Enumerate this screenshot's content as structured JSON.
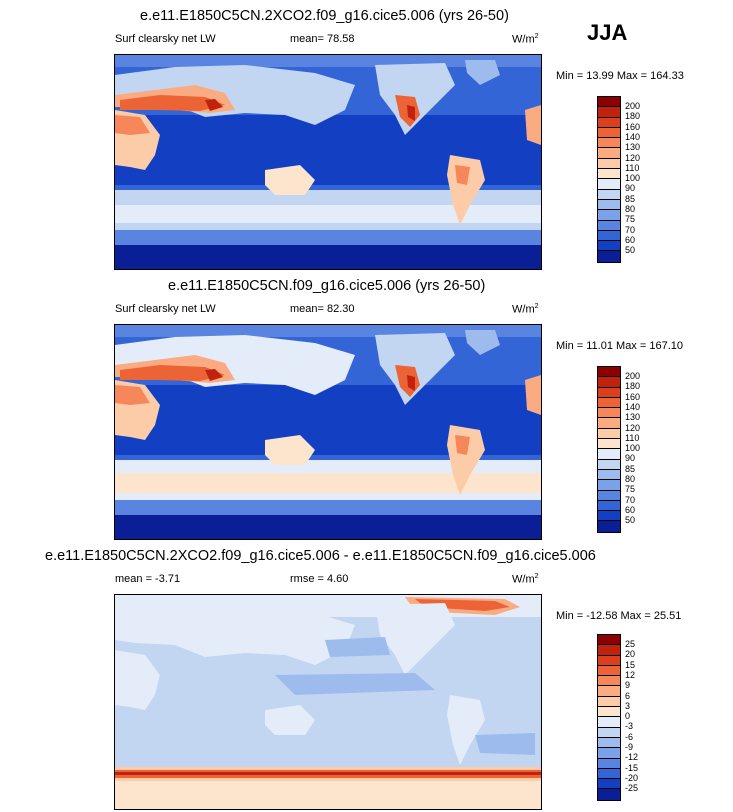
{
  "season": "JJA",
  "panels": [
    {
      "title": "e.e11.E1850C5CN.2XCO2.f09_g16.cice5.006 (yrs 26-50)",
      "variable": "Surf clearsky net LW",
      "mean": "mean=  78.58",
      "units": "W/m",
      "units_sup": "2",
      "minmax": "Min = 13.99 Max = 164.33",
      "colorbar": {
        "labels": [
          "200",
          "180",
          "160",
          "140",
          "130",
          "120",
          "110",
          "100",
          "90",
          "85",
          "80",
          "75",
          "70",
          "60",
          "50"
        ],
        "colors": [
          "#8b0000",
          "#c1210d",
          "#dc3f1d",
          "#ec6336",
          "#f5875a",
          "#fbab82",
          "#fccca8",
          "#fde4cd",
          "#e3ecf8",
          "#c2d6f2",
          "#9dbced",
          "#7ba1e8",
          "#5984e0",
          "#3465d6",
          "#1340c2",
          "#0a1f96"
        ]
      }
    },
    {
      "title": "e.e11.E1850C5CN.f09_g16.cice5.006 (yrs 26-50)",
      "variable": "Surf clearsky net LW",
      "mean": "mean=  82.30",
      "units": "W/m",
      "units_sup": "2",
      "minmax": "Min = 11.01 Max = 167.10",
      "colorbar": {
        "labels": [
          "200",
          "180",
          "160",
          "140",
          "130",
          "120",
          "110",
          "100",
          "90",
          "85",
          "80",
          "75",
          "70",
          "60",
          "50"
        ],
        "colors": [
          "#8b0000",
          "#c1210d",
          "#dc3f1d",
          "#ec6336",
          "#f5875a",
          "#fbab82",
          "#fccca8",
          "#fde4cd",
          "#e3ecf8",
          "#c2d6f2",
          "#9dbced",
          "#7ba1e8",
          "#5984e0",
          "#3465d6",
          "#1340c2",
          "#0a1f96"
        ]
      }
    },
    {
      "title": "e.e11.E1850C5CN.2XCO2.f09_g16.cice5.006 - e.e11.E1850C5CN.f09_g16.cice5.006",
      "mean": "mean = -3.71",
      "rmse": "rmse =  4.60",
      "units": "W/m",
      "units_sup": "2",
      "minmax": "Min = -12.58 Max =  25.51",
      "colorbar": {
        "labels": [
          "25",
          "20",
          "15",
          "12",
          "9",
          "6",
          "3",
          "0",
          "-3",
          "-6",
          "-9",
          "-12",
          "-15",
          "-20",
          "-25"
        ],
        "colors": [
          "#8b0000",
          "#c1210d",
          "#dc3f1d",
          "#ec6336",
          "#f5875a",
          "#fbab82",
          "#fccca8",
          "#fde4cd",
          "#e3ecf8",
          "#c2d6f2",
          "#9dbced",
          "#7ba1e8",
          "#5984e0",
          "#3465d6",
          "#1340c2",
          "#0a1f96"
        ]
      }
    }
  ]
}
